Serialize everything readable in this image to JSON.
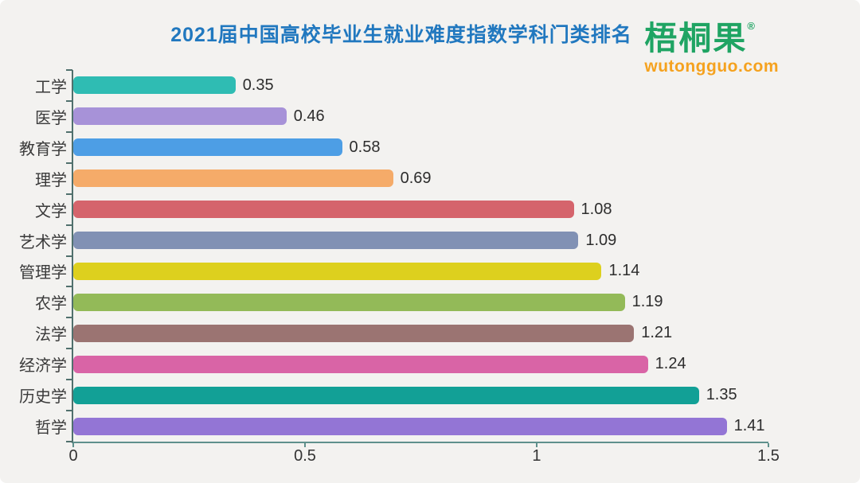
{
  "header": {
    "title": "2021届中国高校毕业生就业难度指数学科门类排名"
  },
  "logo": {
    "name": "梧桐果",
    "registered": "®",
    "domain": "wutongguo.com"
  },
  "colors": {
    "background": "#f3f2f0",
    "title": "#2178bf",
    "logo_green": "#1fa463",
    "logo_orange": "#f5a21f",
    "axis": "#5f908c",
    "category_label": "#3a3a3a",
    "value_label": "#2d2d2d"
  },
  "chart_data": {
    "type": "bar",
    "orientation": "horizontal",
    "title": "2021届中国高校毕业生就业难度指数学科门类排名",
    "xlabel": "",
    "ylabel": "",
    "grid": false,
    "legend": false,
    "xlim": [
      0,
      1.5
    ],
    "x_ticks": [
      "0",
      "0.5",
      "1",
      "1.5"
    ],
    "x_tick_values": [
      0,
      0.5,
      1,
      1.5
    ],
    "categories": [
      "工学",
      "医学",
      "教育学",
      "理学",
      "文学",
      "艺术学",
      "管理学",
      "农学",
      "法学",
      "经济学",
      "历史学",
      "哲学"
    ],
    "values": [
      0.35,
      0.46,
      0.58,
      0.69,
      1.08,
      1.09,
      1.14,
      1.19,
      1.21,
      1.24,
      1.35,
      1.41
    ],
    "value_labels": [
      "0.35",
      "0.46",
      "0.58",
      "0.69",
      "1.08",
      "1.09",
      "1.14",
      "1.19",
      "1.21",
      "1.24",
      "1.35",
      "1.41"
    ],
    "bar_colors": [
      "#2fbcb3",
      "#a792d8",
      "#4d9ee5",
      "#f5ab69",
      "#d5646c",
      "#8191b4",
      "#ddd01e",
      "#93ba58",
      "#9b7472",
      "#d964a6",
      "#12a096",
      "#9375d5"
    ]
  }
}
